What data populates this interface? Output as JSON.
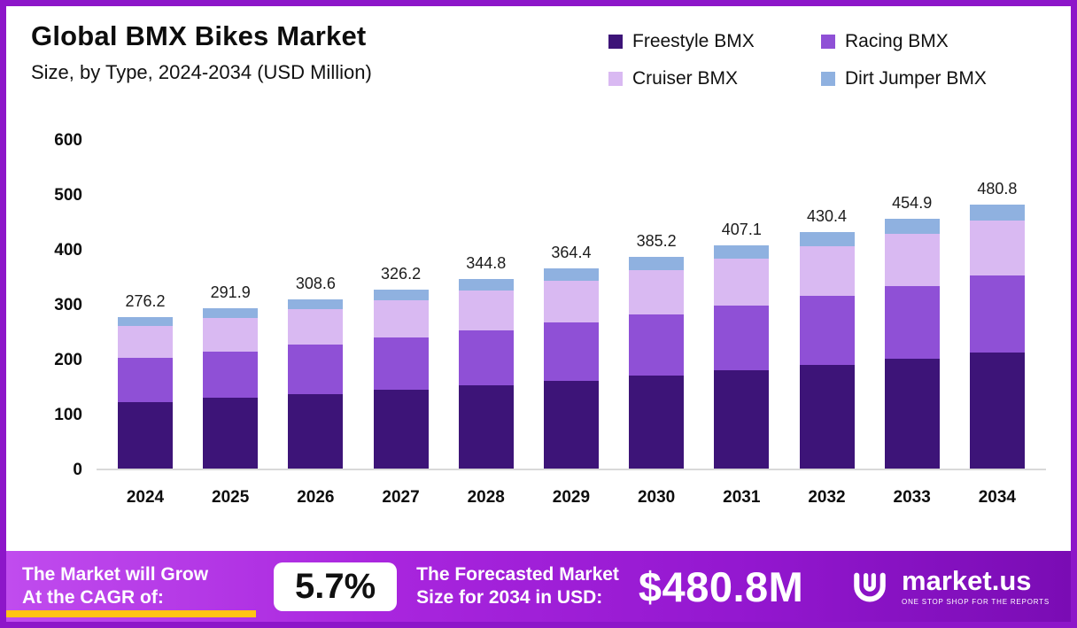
{
  "header": {
    "title": "Global BMX Bikes Market",
    "subtitle": "Size, by Type, 2024-2034 (USD Million)"
  },
  "chart_data": {
    "type": "bar",
    "stacked": true,
    "title": "Global BMX Bikes Market Size, by Type, 2024-2034 (USD Million)",
    "xlabel": "",
    "ylabel": "",
    "ylim": [
      0,
      600
    ],
    "yticks": [
      0,
      100,
      200,
      300,
      400,
      500,
      600
    ],
    "grid": false,
    "legend_position": "top-right",
    "categories": [
      "2024",
      "2025",
      "2026",
      "2027",
      "2028",
      "2029",
      "2030",
      "2031",
      "2032",
      "2033",
      "2034"
    ],
    "totals": [
      276.2,
      291.9,
      308.6,
      326.2,
      344.8,
      364.4,
      385.2,
      407.1,
      430.4,
      454.9,
      480.8
    ],
    "series": [
      {
        "name": "Freestyle BMX",
        "color": "#3d1478",
        "values": [
          121.5,
          128.4,
          135.8,
          143.5,
          151.7,
          160.3,
          169.5,
          179.1,
          189.4,
          200.2,
          211.6
        ]
      },
      {
        "name": "Racing BMX",
        "color": "#8f50d6",
        "values": [
          80.1,
          84.7,
          89.5,
          94.6,
          100.0,
          105.7,
          111.7,
          118.1,
          124.8,
          131.9,
          139.4
        ]
      },
      {
        "name": "Cruiser BMX",
        "color": "#d9b9f2",
        "values": [
          58.0,
          61.3,
          64.8,
          68.5,
          72.4,
          76.5,
          80.9,
          85.5,
          90.4,
          95.5,
          101.0
        ]
      },
      {
        "name": "Dirt Jumper BMX",
        "color": "#8fb1e0",
        "values": [
          16.6,
          17.5,
          18.5,
          19.6,
          20.7,
          21.9,
          23.1,
          24.4,
          25.8,
          27.3,
          28.8
        ]
      }
    ]
  },
  "banner": {
    "cagr_line1": "The Market will Grow",
    "cagr_line2": "At the CAGR of:",
    "cagr_value": "5.7%",
    "forecast_line1": "The Forecasted Market",
    "forecast_line2": "Size for 2034 in USD:",
    "forecast_value": "$480.8M",
    "brand": "market.us",
    "brand_tagline": "ONE STOP SHOP FOR THE REPORTS"
  },
  "colors": {
    "frame_border": "#8d16c9",
    "banner_gradient_start": "#c04cee",
    "banner_gradient_end": "#7a0cb4",
    "accent_yellow": "#ffc414"
  }
}
